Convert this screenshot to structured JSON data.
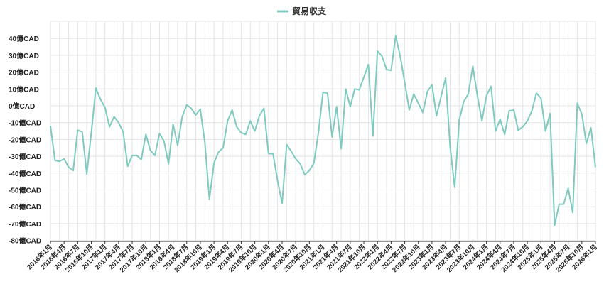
{
  "chart_data": {
    "type": "line",
    "legend": {
      "position": "top-center",
      "items": [
        {
          "name": "貿易収支",
          "color": "#7fcabf"
        }
      ]
    },
    "series": [
      {
        "name": "貿易収支",
        "color": "#7fcabf",
        "values": [
          -12,
          -32.5,
          -33,
          -31.5,
          -36.5,
          -38.5,
          -14.5,
          -15.5,
          -40.5,
          -16,
          10.5,
          4,
          -1,
          -12.5,
          -6.5,
          -10,
          -15.5,
          -36,
          -29.5,
          -29.5,
          -32,
          -17,
          -26.5,
          -29.5,
          -16.5,
          -21,
          -34.5,
          -11,
          -23.5,
          -6.5,
          0.5,
          -1.5,
          -5.5,
          -2,
          -22,
          -55.5,
          -34,
          -27.5,
          -25,
          -9,
          -2.5,
          -12.5,
          -16,
          -17,
          -9,
          -15,
          -6,
          -1.5,
          -28.5,
          -28.5,
          -44.5,
          -58,
          -23,
          -27,
          -31.5,
          -34.5,
          -41,
          -38.5,
          -34,
          -16,
          8,
          7.5,
          -18.5,
          -0.5,
          -25.5,
          10,
          -0.5,
          10,
          9.5,
          17,
          24.5,
          -18,
          32.5,
          29.5,
          21.5,
          21,
          41.5,
          29.5,
          14,
          -2.5,
          7,
          1.5,
          -4,
          8.5,
          12.5,
          -6,
          5.5,
          16.5,
          -24.5,
          -48.5,
          -8.5,
          2.5,
          7,
          23.5,
          6,
          -9,
          6,
          11.5,
          -15,
          -8,
          -17,
          -3,
          -2.5,
          -14.5,
          -12.5,
          -9,
          -3,
          7.5,
          4.5,
          -15,
          -4.5,
          -71,
          -58.5,
          -58.5,
          -49,
          -63.5,
          1.5,
          -5,
          -22.5,
          -13,
          -36.5
        ]
      }
    ],
    "x_range": [
      "2016-01",
      "2026-01"
    ],
    "xtick_labels": [
      "2016年1月",
      "2016年4月",
      "2016年7月",
      "2016年10月",
      "2017年1月",
      "2017年4月",
      "2017年7月",
      "2017年10月",
      "2018年1月",
      "2018年4月",
      "2018年7月",
      "2018年10月",
      "2019年1月",
      "2019年4月",
      "2019年7月",
      "2019年10月",
      "2020年1月",
      "2020年4月",
      "2020年7月",
      "2020年10月",
      "2021年1月",
      "2021年4月",
      "2021年7月",
      "2021年10月",
      "2022年1月",
      "2022年4月",
      "2022年7月",
      "2022年10月",
      "2023年1月",
      "2023年4月",
      "2023年7月",
      "2023年10月",
      "2024年1月",
      "2024年4月",
      "2024年7月",
      "2024年10月",
      "2025年1月",
      "2025年4月",
      "2025年7月",
      "2025年10月",
      "2026年1月"
    ],
    "ytick_labels": [
      "40億CAD",
      "30億CAD",
      "20億CAD",
      "10億CAD",
      "0億CAD",
      "-10億CAD",
      "-20億CAD",
      "-30億CAD",
      "-40億CAD",
      "-50億CAD",
      "-60億CAD",
      "-70億CAD",
      "-80億CAD"
    ],
    "ytick_values": [
      40,
      30,
      20,
      10,
      0,
      -10,
      -20,
      -30,
      -40,
      -50,
      -60,
      -70,
      -80
    ],
    "ylim": [
      -80,
      40
    ],
    "grid": true
  }
}
